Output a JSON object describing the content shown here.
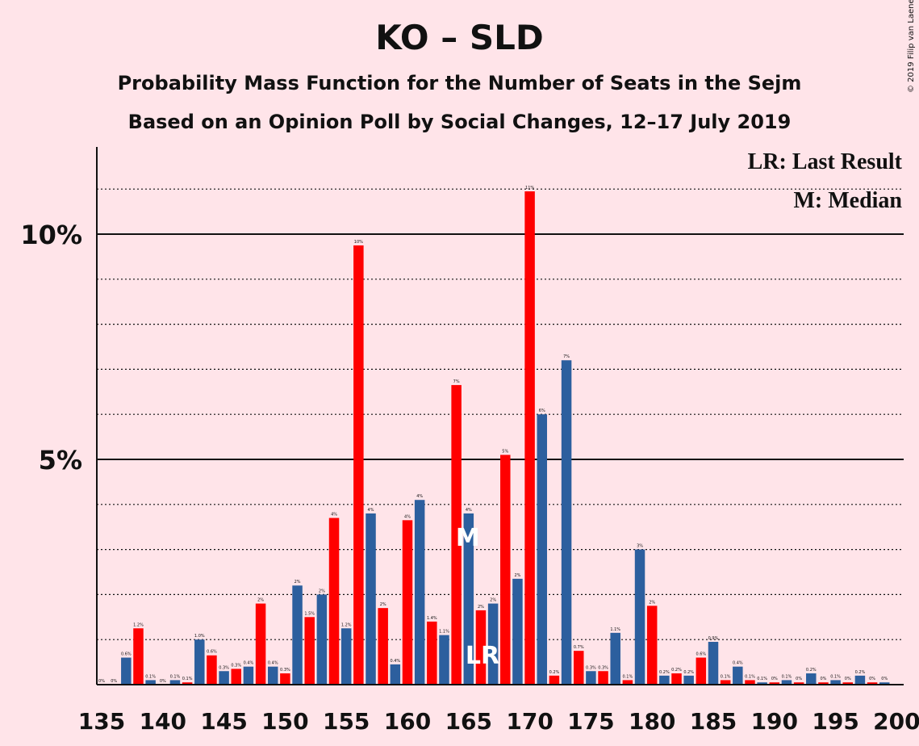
{
  "title": "KO – SLD",
  "subtitle": "Probability Mass Function for the Number of Seats in the Sejm",
  "subtitle2": "Based on an Opinion Poll by Social Changes, 12–17 July 2019",
  "copyright": "© 2019 Filip van Laenen",
  "legend": {
    "lr": "LR: Last Result",
    "m": "M: Median"
  },
  "colors": {
    "background": "#FFE4E9",
    "blue": "#2C5F9E",
    "red": "#FF0000",
    "axis": "#111111"
  },
  "chart_data": {
    "type": "bar",
    "x": [
      135,
      136,
      137,
      138,
      139,
      140,
      141,
      142,
      143,
      144,
      145,
      146,
      147,
      148,
      149,
      150,
      151,
      152,
      153,
      154,
      155,
      156,
      157,
      158,
      159,
      160,
      161,
      162,
      163,
      164,
      165,
      166,
      167,
      168,
      169,
      170,
      171,
      172,
      173,
      174,
      175,
      176,
      177,
      178,
      179,
      180,
      181,
      182,
      183,
      184,
      185,
      186,
      187,
      188,
      189,
      190,
      191,
      192,
      193,
      194,
      195,
      196,
      197,
      198,
      199
    ],
    "values": [
      0,
      0,
      0.6,
      1.25,
      0.1,
      0,
      0.1,
      0.05,
      1.0,
      0.65,
      0.3,
      0.35,
      0.4,
      1.8,
      0.4,
      0.25,
      2.2,
      1.5,
      2.0,
      3.7,
      1.25,
      9.75,
      3.8,
      1.7,
      0.45,
      3.65,
      4.1,
      1.4,
      1.1,
      6.65,
      3.8,
      1.65,
      1.8,
      5.1,
      2.35,
      10.95,
      6.0,
      0.2,
      7.2,
      0.75,
      0.3,
      0.3,
      1.15,
      0.1,
      3.0,
      1.75,
      0.2,
      0.25,
      0.2,
      0.6,
      0.95,
      0.1,
      0.4,
      0.1,
      0.05,
      0.05,
      0.1,
      0.05,
      0.25,
      0.05,
      0.1,
      0.05,
      0.2,
      0.05,
      0.05
    ],
    "value_labels": [
      "0%",
      "0%",
      "0.6%",
      "1.2%",
      "0.1%",
      "0%",
      "0.1%",
      "0.1%",
      "1.0%",
      "0.6%",
      "0.3%",
      "0.3%",
      "0.4%",
      "2%",
      "0.4%",
      "0.3%",
      "2%",
      "1.5%",
      "2%",
      "4%",
      "1.2%",
      "10%",
      "4%",
      "2%",
      "0.4%",
      "4%",
      "4%",
      "1.4%",
      "1.1%",
      "7%",
      "4%",
      "2%",
      "2%",
      "5%",
      "2%",
      "11%",
      "6%",
      "0.2%",
      "7%",
      "0.7%",
      "0.3%",
      "0.3%",
      "1.1%",
      "0.1%",
      "3%",
      "2%",
      "0.2%",
      "0.2%",
      "0.2%",
      "0.6%",
      "0.9%",
      "0.1%",
      "0.4%",
      "0.1%",
      "0.1%",
      "0%",
      "0.1%",
      "0%",
      "0.2%",
      "0%",
      "0.1%",
      "0%",
      "0.2%",
      "0%",
      "0%"
    ],
    "color_pattern": "odd seat counts blue, even seat counts red",
    "xticks": [
      135,
      140,
      145,
      150,
      155,
      160,
      165,
      170,
      175,
      180,
      185,
      190,
      195,
      200
    ],
    "yticks": [
      "5%",
      "10%"
    ],
    "ylim": [
      0,
      12
    ],
    "gridlines": "solid at 5% and 10%, dotted every 1%",
    "median": 165,
    "median_label": "M",
    "last_result": 166,
    "last_result_label": "LR"
  }
}
